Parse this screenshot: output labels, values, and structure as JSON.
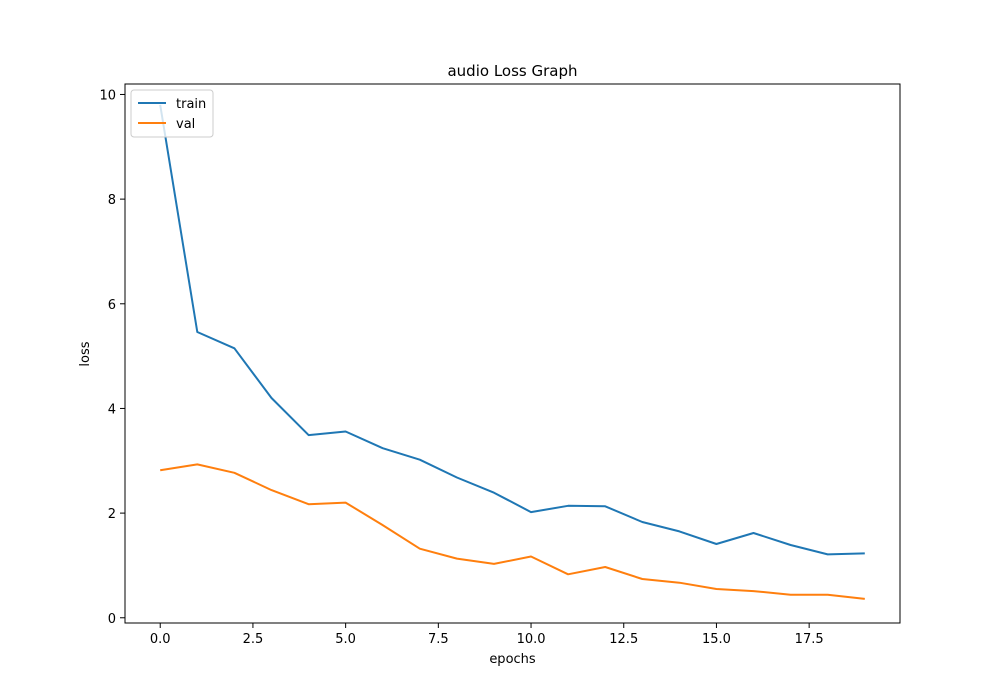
{
  "chart_data": {
    "type": "line",
    "title": "audio Loss Graph",
    "xlabel": "epochs",
    "ylabel": "loss",
    "xlim": [
      -0.95,
      19.95
    ],
    "ylim": [
      -0.1,
      10.2
    ],
    "xticks": [
      0.0,
      2.5,
      5.0,
      7.5,
      10.0,
      12.5,
      15.0,
      17.5
    ],
    "xtick_labels": [
      "0.0",
      "2.5",
      "5.0",
      "7.5",
      "10.0",
      "12.5",
      "15.0",
      "17.5"
    ],
    "yticks": [
      0,
      2,
      4,
      6,
      8,
      10
    ],
    "ytick_labels": [
      "0",
      "2",
      "4",
      "6",
      "8",
      "10"
    ],
    "grid": false,
    "legend_position": "upper left",
    "x": [
      0,
      1,
      2,
      3,
      4,
      5,
      6,
      7,
      8,
      9,
      10,
      11,
      12,
      13,
      14,
      15,
      16,
      17,
      18,
      19
    ],
    "series": [
      {
        "name": "train",
        "color": "#1f77b4",
        "values": [
          9.8,
          5.46,
          5.15,
          4.2,
          3.49,
          3.56,
          3.24,
          3.02,
          2.68,
          2.39,
          2.02,
          2.14,
          2.13,
          1.83,
          1.65,
          1.41,
          1.62,
          1.39,
          1.21,
          1.23
        ]
      },
      {
        "name": "val",
        "color": "#ff7f0e",
        "values": [
          2.82,
          2.93,
          2.77,
          2.44,
          2.17,
          2.2,
          1.77,
          1.32,
          1.13,
          1.03,
          1.17,
          0.83,
          0.97,
          0.74,
          0.67,
          0.55,
          0.51,
          0.44,
          0.44,
          0.36
        ]
      }
    ]
  }
}
